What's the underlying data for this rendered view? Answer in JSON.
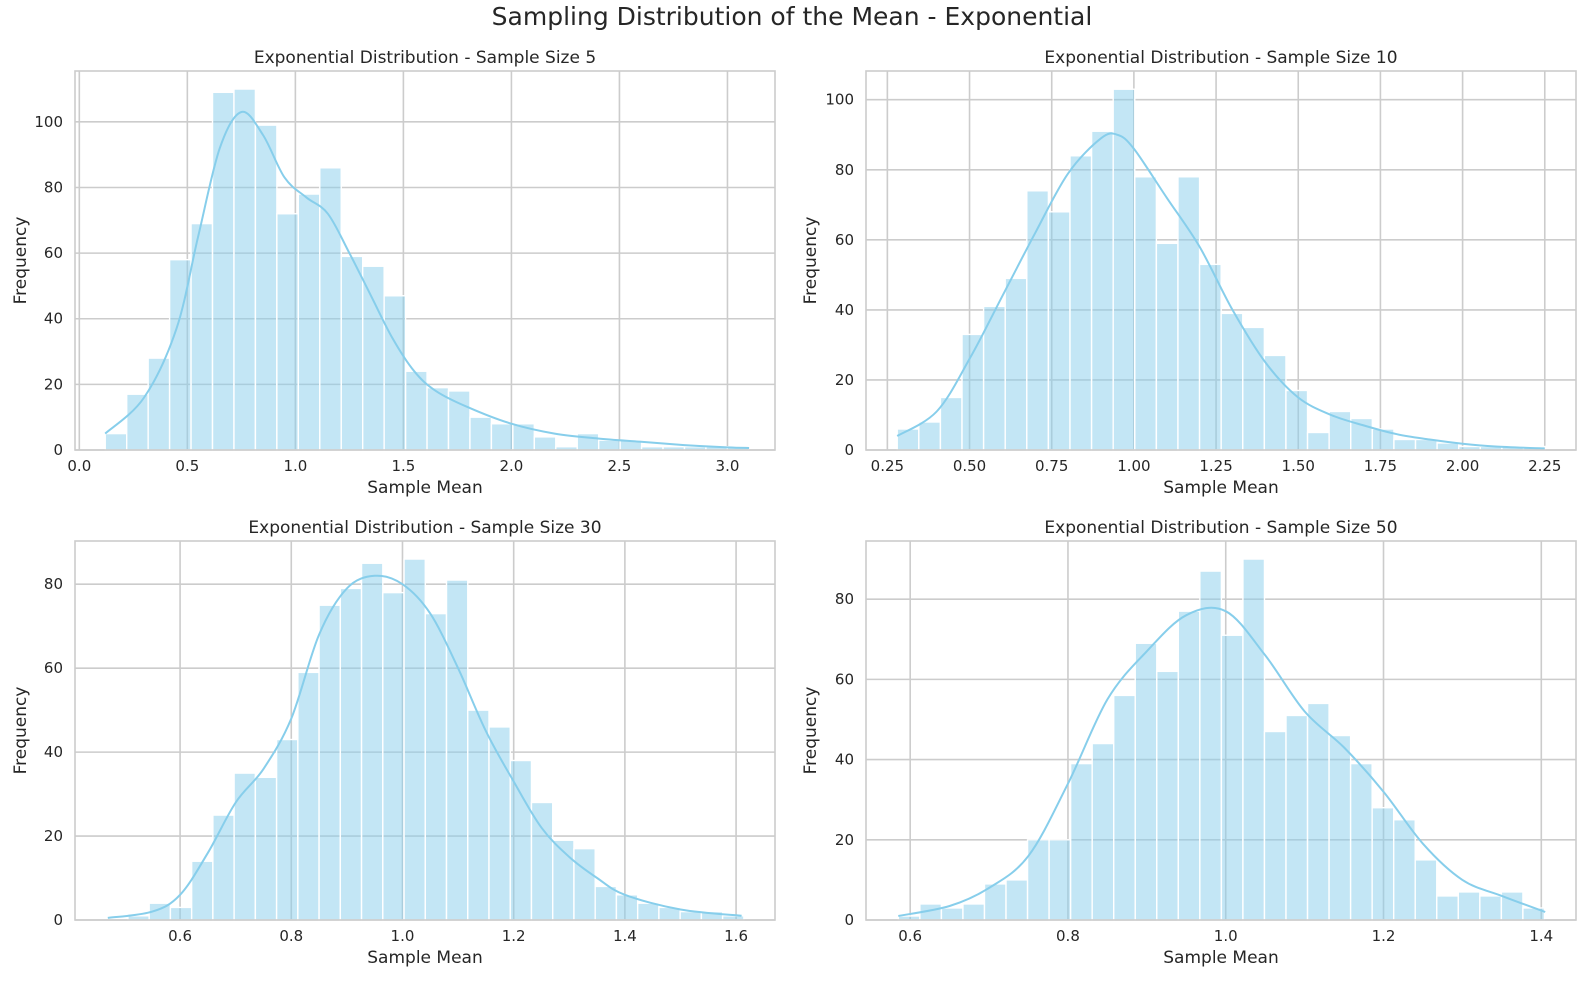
{
  "figure": {
    "title": "Sampling Distribution of the Mean - Exponential"
  },
  "colors": {
    "bar": "#87ceeb",
    "kde": "#87ceeb",
    "grid": "#cccccc",
    "frame": "#cccccc"
  },
  "chart_data": [
    {
      "type": "bar",
      "title": "Exponential Distribution - Sample Size 5",
      "xlabel": "Sample Mean",
      "ylabel": "Frequency",
      "xlim": [
        -0.02,
        3.22
      ],
      "ylim": [
        0,
        115.5
      ],
      "xticks": [
        0.0,
        0.5,
        1.0,
        1.5,
        2.0,
        2.5,
        3.0
      ],
      "xtick_labels": [
        "0.0",
        "0.5",
        "1.0",
        "1.5",
        "2.0",
        "2.5",
        "3.0"
      ],
      "yticks": [
        0,
        20,
        40,
        60,
        80,
        100
      ],
      "ytick_labels": [
        "0",
        "20",
        "40",
        "60",
        "80",
        "100"
      ],
      "grid": true,
      "bins": {
        "start": 0.12,
        "width": 0.0993,
        "counts": [
          5,
          17,
          28,
          58,
          69,
          109,
          110,
          99,
          72,
          78,
          86,
          59,
          56,
          47,
          24,
          19,
          18,
          10,
          8,
          8,
          4,
          1,
          5,
          3,
          3,
          1,
          1,
          1,
          1,
          1
        ]
      },
      "kde": {
        "x": [
          0.12,
          0.3,
          0.45,
          0.55,
          0.65,
          0.75,
          0.85,
          0.95,
          1.05,
          1.15,
          1.25,
          1.35,
          1.45,
          1.55,
          1.65,
          1.8,
          2.0,
          2.2,
          2.4,
          2.6,
          2.8,
          3.0,
          3.1
        ],
        "y": [
          5,
          16,
          37,
          65,
          92,
          103,
          96,
          83,
          77,
          72,
          60,
          47,
          34,
          24,
          18,
          13,
          8,
          5,
          3.5,
          2.5,
          1.5,
          0.8,
          0.6
        ]
      }
    },
    {
      "type": "bar",
      "title": "Exponential Distribution - Sample Size 10",
      "xlabel": "Sample Mean",
      "ylabel": "Frequency",
      "xlim": [
        0.185,
        2.345
      ],
      "ylim": [
        0,
        108.2
      ],
      "xticks": [
        0.25,
        0.5,
        0.75,
        1.0,
        1.25,
        1.5,
        1.75,
        2.0,
        2.25
      ],
      "xtick_labels": [
        "0.25",
        "0.50",
        "0.75",
        "1.00",
        "1.25",
        "1.50",
        "1.75",
        "2.00",
        "2.25"
      ],
      "yticks": [
        0,
        20,
        40,
        60,
        80,
        100
      ],
      "ytick_labels": [
        "0",
        "20",
        "40",
        "60",
        "80",
        "100"
      ],
      "grid": true,
      "bins": {
        "start": 0.28,
        "width": 0.0657,
        "counts": [
          6,
          8,
          15,
          33,
          41,
          49,
          74,
          68,
          84,
          91,
          103,
          78,
          59,
          78,
          53,
          39,
          35,
          27,
          17,
          5,
          11,
          9,
          6,
          3,
          3,
          2,
          1,
          1,
          1,
          1
        ]
      },
      "kde": {
        "x": [
          0.28,
          0.4,
          0.5,
          0.6,
          0.7,
          0.8,
          0.9,
          0.95,
          1.0,
          1.1,
          1.2,
          1.3,
          1.4,
          1.5,
          1.6,
          1.7,
          1.8,
          1.9,
          2.0,
          2.1,
          2.25
        ],
        "y": [
          4,
          11,
          26,
          44,
          62,
          79,
          89,
          90,
          86,
          72,
          58,
          40,
          25,
          15,
          10,
          7,
          4.5,
          3,
          1.8,
          1,
          0.4
        ]
      }
    },
    {
      "type": "bar",
      "title": "Exponential Distribution - Sample Size 30",
      "xlabel": "Sample Mean",
      "ylabel": "Frequency",
      "xlim": [
        0.411,
        1.67
      ],
      "ylim": [
        0,
        90.3
      ],
      "xticks": [
        0.6,
        0.8,
        1.0,
        1.2,
        1.4,
        1.6
      ],
      "xtick_labels": [
        "0.6",
        "0.8",
        "1.0",
        "1.2",
        "1.4",
        "1.6"
      ],
      "yticks": [
        0,
        20,
        40,
        60,
        80
      ],
      "ytick_labels": [
        "0",
        "20",
        "40",
        "60",
        "80"
      ],
      "grid": true,
      "bins": {
        "start": 0.468,
        "width": 0.0382,
        "counts": [
          0,
          1,
          4,
          3,
          14,
          25,
          35,
          34,
          43,
          59,
          75,
          79,
          85,
          78,
          86,
          73,
          81,
          50,
          46,
          38,
          28,
          19,
          17,
          8,
          6,
          4,
          3,
          2,
          2,
          1
        ]
      },
      "kde": {
        "x": [
          0.47,
          0.55,
          0.6,
          0.65,
          0.7,
          0.75,
          0.8,
          0.85,
          0.9,
          0.95,
          1.0,
          1.05,
          1.1,
          1.15,
          1.2,
          1.25,
          1.3,
          1.35,
          1.4,
          1.5,
          1.61
        ],
        "y": [
          0.5,
          2,
          6,
          16,
          28,
          36,
          48,
          68,
          79,
          82,
          80,
          73,
          60,
          45,
          33,
          22,
          15,
          10,
          6,
          2.5,
          1
        ]
      }
    },
    {
      "type": "bar",
      "title": "Exponential Distribution - Sample Size 50",
      "xlabel": "Sample Mean",
      "ylabel": "Frequency",
      "xlim": [
        0.544,
        1.444
      ],
      "ylim": [
        0,
        94.5
      ],
      "xticks": [
        0.6,
        0.8,
        1.0,
        1.2,
        1.4
      ],
      "xtick_labels": [
        "0.6",
        "0.8",
        "1.0",
        "1.2",
        "1.4"
      ],
      "yticks": [
        0,
        20,
        40,
        60,
        80
      ],
      "ytick_labels": [
        "0",
        "20",
        "40",
        "60",
        "80"
      ],
      "grid": true,
      "bins": {
        "start": 0.585,
        "width": 0.0273,
        "counts": [
          1,
          4,
          3,
          4,
          9,
          10,
          20,
          20,
          39,
          44,
          56,
          69,
          62,
          77,
          87,
          71,
          90,
          47,
          51,
          54,
          46,
          39,
          28,
          25,
          15,
          6,
          7,
          6,
          7,
          3
        ]
      },
      "kde": {
        "x": [
          0.585,
          0.65,
          0.7,
          0.75,
          0.8,
          0.85,
          0.9,
          0.95,
          1.0,
          1.05,
          1.1,
          1.15,
          1.2,
          1.25,
          1.3,
          1.35,
          1.405
        ],
        "y": [
          1,
          3.5,
          8,
          16,
          34,
          55,
          67,
          76,
          77,
          66,
          52,
          43,
          32,
          19,
          10,
          6,
          2
        ]
      }
    }
  ]
}
